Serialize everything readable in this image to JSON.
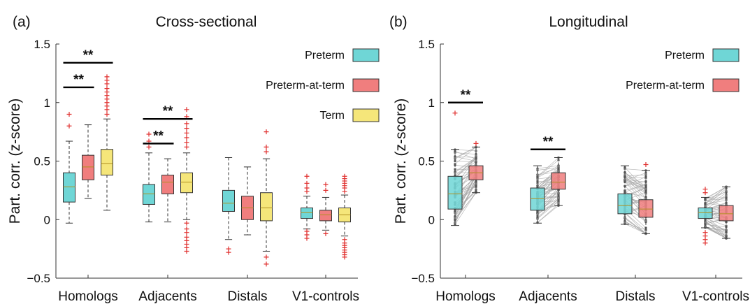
{
  "chart_data": [
    {
      "panel_label": "(a)",
      "title": "Cross-sectional",
      "type": "box",
      "ylabel": "Part. corr. (z-score)",
      "ylim": [
        -0.5,
        1.5
      ],
      "yticks": [
        -0.5,
        0,
        0.5,
        1,
        1.5
      ],
      "ytick_labels": [
        "−0.5",
        "0",
        "0.5",
        "1",
        "1.5"
      ],
      "categories": [
        "Homologs",
        "Adjacents",
        "Distals",
        "V1-controls"
      ],
      "legend": {
        "placement": "top-right",
        "entries": [
          {
            "name": "Preterm",
            "color": "#6fd6d6"
          },
          {
            "name": "Preterm-at-term",
            "color": "#f07e7e"
          },
          {
            "name": "Term",
            "color": "#f5e67a"
          }
        ]
      },
      "series": [
        {
          "name": "Preterm",
          "color": "#6fd6d6",
          "boxes": [
            {
              "min": -0.03,
              "q1": 0.15,
              "median": 0.28,
              "q3": 0.4,
              "max": 0.67,
              "outliers": [
                0.8,
                0.9
              ]
            },
            {
              "min": -0.02,
              "q1": 0.13,
              "median": 0.22,
              "q3": 0.3,
              "max": 0.57,
              "outliers": [
                0.62,
                0.67,
                0.73
              ]
            },
            {
              "min": -0.17,
              "q1": 0.07,
              "median": 0.14,
              "q3": 0.25,
              "max": 0.53,
              "outliers": [
                -0.25,
                -0.28
              ]
            },
            {
              "min": -0.08,
              "q1": 0.01,
              "median": 0.06,
              "q3": 0.1,
              "max": 0.2,
              "outliers": [
                -0.1,
                -0.13,
                -0.16,
                0.24,
                0.27,
                0.31,
                0.37
              ]
            }
          ]
        },
        {
          "name": "Preterm-at-term",
          "color": "#f07e7e",
          "boxes": [
            {
              "min": 0.18,
              "q1": 0.34,
              "median": 0.45,
              "q3": 0.55,
              "max": 0.81,
              "outliers": []
            },
            {
              "min": -0.02,
              "q1": 0.22,
              "median": 0.32,
              "q3": 0.38,
              "max": 0.52,
              "outliers": []
            },
            {
              "min": -0.13,
              "q1": 0.0,
              "median": 0.1,
              "q3": 0.2,
              "max": 0.45,
              "outliers": []
            },
            {
              "min": -0.09,
              "q1": -0.01,
              "median": 0.04,
              "q3": 0.08,
              "max": 0.19,
              "outliers": [
                -0.12,
                0.25,
                0.3
              ]
            }
          ]
        },
        {
          "name": "Term",
          "color": "#f5e67a",
          "boxes": [
            {
              "min": 0.08,
              "q1": 0.38,
              "median": 0.48,
              "q3": 0.6,
              "max": 0.86,
              "outliers": [
                0.9,
                0.94,
                0.97,
                1.0,
                1.03,
                1.06,
                1.09,
                1.12,
                1.16,
                1.19,
                1.22
              ]
            },
            {
              "min": 0.0,
              "q1": 0.23,
              "median": 0.32,
              "q3": 0.4,
              "max": 0.57,
              "outliers": [
                -0.03,
                -0.08,
                -0.11,
                -0.15,
                -0.18,
                -0.21,
                -0.24,
                -0.27,
                0.62,
                0.66,
                0.7,
                0.74,
                0.78,
                0.82,
                0.88,
                0.94
              ]
            },
            {
              "min": -0.27,
              "q1": -0.01,
              "median": 0.1,
              "q3": 0.23,
              "max": 0.52,
              "outliers": [
                -0.38,
                -0.32,
                0.58,
                0.62,
                0.75
              ]
            },
            {
              "min": -0.14,
              "q1": -0.02,
              "median": 0.04,
              "q3": 0.1,
              "max": 0.21,
              "outliers": [
                -0.17,
                -0.2,
                -0.22,
                -0.24,
                -0.26,
                -0.28,
                -0.3,
                -0.32,
                0.24,
                0.27,
                0.29,
                0.31,
                0.33,
                0.35,
                0.37
              ]
            }
          ]
        }
      ],
      "significance": [
        {
          "label": "**",
          "category": "Homologs",
          "from": "Preterm",
          "to": "Preterm-at-term",
          "y": 1.13
        },
        {
          "label": "**",
          "category": "Homologs",
          "from": "Preterm",
          "to": "Term",
          "y": 1.34
        },
        {
          "label": "**",
          "category": "Adjacents",
          "from": "Preterm",
          "to": "Preterm-at-term",
          "y": 0.65
        },
        {
          "label": "**",
          "category": "Adjacents",
          "from": "Preterm",
          "to": "Term",
          "y": 0.86
        }
      ]
    },
    {
      "panel_label": "(b)",
      "title": "Longitudinal",
      "type": "box",
      "ylabel": "Part. corr. (z-score)",
      "ylim": [
        -0.5,
        1.5
      ],
      "yticks": [
        -0.5,
        0,
        0.5,
        1,
        1.5
      ],
      "ytick_labels": [
        "−0.5",
        "0",
        "0.5",
        "1",
        "1.5"
      ],
      "categories": [
        "Homologs",
        "Adjacents",
        "Distals",
        "V1-controls"
      ],
      "legend": {
        "placement": "top-right",
        "entries": [
          {
            "name": "Preterm",
            "color": "#6fd6d6"
          },
          {
            "name": "Preterm-at-term",
            "color": "#f07e7e"
          }
        ]
      },
      "paired_lines": true,
      "series": [
        {
          "name": "Preterm",
          "color": "#6fd6d6",
          "boxes": [
            {
              "min": -0.05,
              "q1": 0.09,
              "median": 0.22,
              "q3": 0.37,
              "max": 0.6,
              "outliers": [
                0.91
              ]
            },
            {
              "min": -0.03,
              "q1": 0.08,
              "median": 0.18,
              "q3": 0.27,
              "max": 0.46,
              "outliers": []
            },
            {
              "min": -0.04,
              "q1": 0.05,
              "median": 0.12,
              "q3": 0.22,
              "max": 0.46,
              "outliers": []
            },
            {
              "min": -0.07,
              "q1": 0.01,
              "median": 0.06,
              "q3": 0.1,
              "max": 0.19,
              "outliers": [
                -0.11,
                -0.14,
                -0.17,
                -0.2,
                0.23,
                0.26
              ]
            }
          ]
        },
        {
          "name": "Preterm-at-term",
          "color": "#f07e7e",
          "boxes": [
            {
              "min": 0.23,
              "q1": 0.34,
              "median": 0.4,
              "q3": 0.46,
              "max": 0.62,
              "outliers": [
                0.65
              ]
            },
            {
              "min": 0.12,
              "q1": 0.26,
              "median": 0.32,
              "q3": 0.4,
              "max": 0.53,
              "outliers": []
            },
            {
              "min": -0.12,
              "q1": 0.02,
              "median": 0.09,
              "q3": 0.17,
              "max": 0.42,
              "outliers": [
                0.47
              ]
            },
            {
              "min": -0.16,
              "q1": -0.01,
              "median": 0.05,
              "q3": 0.12,
              "max": 0.28,
              "outliers": []
            }
          ]
        }
      ],
      "significance": [
        {
          "label": "**",
          "category": "Homologs",
          "from": "Preterm",
          "to": "Preterm-at-term",
          "y": 1.0
        },
        {
          "label": "**",
          "category": "Adjacents",
          "from": "Preterm",
          "to": "Preterm-at-term",
          "y": 0.6
        }
      ]
    }
  ]
}
